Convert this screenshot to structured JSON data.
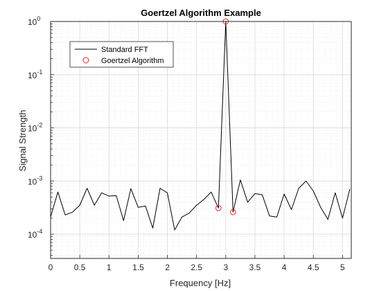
{
  "chart_data": {
    "type": "line",
    "title": "Goertzel Algorithm Example",
    "xlabel": "Frequency [Hz]",
    "ylabel": "Signal Strength",
    "xlim": [
      0,
      5.15
    ],
    "ylim": [
      3.5e-05,
      1.0
    ],
    "yscale": "log",
    "grid": true,
    "minor_grid": true,
    "legend_position": "top-left",
    "x_ticks": [
      "0",
      "0.5",
      "1",
      "1.5",
      "2",
      "2.5",
      "3",
      "3.5",
      "4",
      "4.5",
      "5"
    ],
    "x_tick_values": [
      0,
      0.5,
      1,
      1.5,
      2,
      2.5,
      3,
      3.5,
      4,
      4.5,
      5
    ],
    "y_ticks": [
      {
        "base": "10",
        "exp": "-4",
        "value": 0.0001
      },
      {
        "base": "10",
        "exp": "-3",
        "value": 0.001
      },
      {
        "base": "10",
        "exp": "-2",
        "value": 0.01
      },
      {
        "base": "10",
        "exp": "-1",
        "value": 0.1
      },
      {
        "base": "10",
        "exp": "0",
        "value": 1
      }
    ],
    "series": [
      {
        "name": "Standard FFT",
        "color": "#000000",
        "marker": "none",
        "x": [
          0,
          0.125,
          0.25,
          0.375,
          0.5,
          0.625,
          0.75,
          0.875,
          1.0,
          1.125,
          1.25,
          1.375,
          1.5,
          1.625,
          1.75,
          1.875,
          2.0,
          2.125,
          2.25,
          2.375,
          2.5,
          2.625,
          2.75,
          2.875,
          3.0,
          3.125,
          3.25,
          3.375,
          3.5,
          3.625,
          3.75,
          3.875,
          4.0,
          4.125,
          4.25,
          4.375,
          4.5,
          4.625,
          4.75,
          4.875,
          5.0,
          5.125
        ],
        "y": [
          0.00021,
          0.00062,
          0.00023,
          0.00026,
          0.00035,
          0.00073,
          0.00035,
          0.0006,
          0.00052,
          0.00053,
          0.00018,
          0.00072,
          0.00032,
          0.00034,
          0.00013,
          0.00073,
          0.0006,
          0.00012,
          0.00021,
          0.00025,
          0.00035,
          0.00045,
          0.00062,
          0.00031,
          1.0,
          0.00026,
          0.00105,
          0.0004,
          0.00058,
          0.00055,
          0.00022,
          0.00021,
          0.00057,
          0.00029,
          0.00073,
          0.001,
          0.00065,
          0.00032,
          0.00019,
          0.0006,
          0.0002,
          0.0007
        ]
      },
      {
        "name": "Goertzel Algorithm",
        "color": "#e8262d",
        "marker": "circle",
        "line": "none",
        "x": [
          2.875,
          3.0,
          3.125
        ],
        "y": [
          0.00031,
          1.0,
          0.00026
        ]
      }
    ]
  }
}
